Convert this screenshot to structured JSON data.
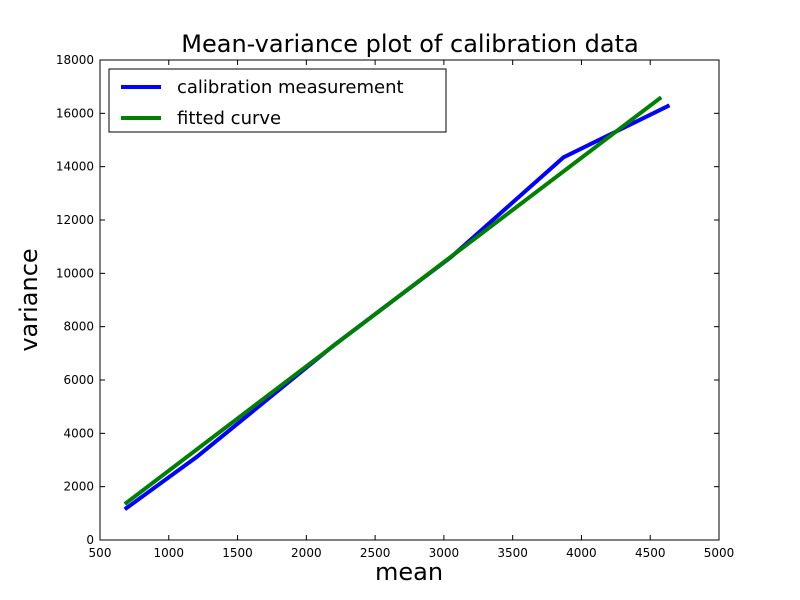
{
  "chart_data": {
    "type": "line",
    "title": "Mean-variance plot of calibration data",
    "xlabel": "mean",
    "ylabel": "variance",
    "xlim": [
      500,
      5000
    ],
    "ylim": [
      0,
      18000
    ],
    "xticks": [
      500,
      1000,
      1500,
      2000,
      2500,
      3000,
      3500,
      4000,
      4500,
      5000
    ],
    "yticks": [
      0,
      2000,
      4000,
      6000,
      8000,
      10000,
      12000,
      14000,
      16000,
      18000
    ],
    "grid": false,
    "legend_position": "top-left",
    "series": [
      {
        "name": "calibration measurement",
        "color": "#0000ff",
        "x": [
          680,
          1200,
          2200,
          3050,
          3870,
          4640
        ],
        "y": [
          1150,
          3100,
          7300,
          10600,
          14350,
          16300
        ]
      },
      {
        "name": "fitted curve",
        "color": "#008000",
        "x": [
          680,
          4580
        ],
        "y": [
          1350,
          16600
        ]
      }
    ]
  }
}
